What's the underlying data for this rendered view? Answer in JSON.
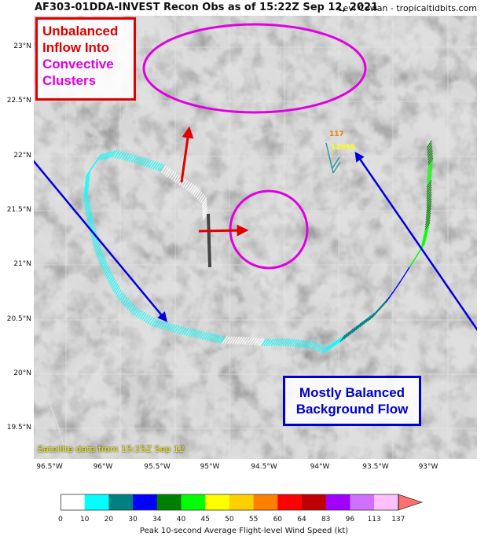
{
  "header": {
    "title": "AF303-01DDA-INVEST Recon Obs as of 15:22Z Sep 12, 2021",
    "credit": "Levi Cowan - tropicaltidbits.com"
  },
  "map": {
    "lat_labels": [
      "23°N",
      "22.5°N",
      "22°N",
      "21.5°N",
      "21°N",
      "20.5°N",
      "20°N",
      "19.5°N"
    ],
    "lon_labels": [
      "96.5°W",
      "96°W",
      "95.5°W",
      "95°W",
      "94.5°W",
      "94°W",
      "93.5°W",
      "93°W"
    ],
    "satellite_stamp": "Satellite data from 15:15Z Sep 12",
    "obs_labels": [
      "117",
      "12055"
    ]
  },
  "annotations": {
    "red_box": {
      "line1": "Unbalanced",
      "line2": "Inflow Into",
      "line3": "Convective",
      "line4": "Clusters"
    },
    "blue_box": {
      "line1": "Mostly Balanced",
      "line2": "Background Flow"
    }
  },
  "colorbar": {
    "label": "Peak 10-second Average Flight-level Wind Speed (kt)",
    "ticks": [
      "0",
      "10",
      "20",
      "30",
      "34",
      "40",
      "45",
      "50",
      "55",
      "60",
      "64",
      "83",
      "96",
      "113",
      "137"
    ],
    "colors": [
      "#ffffff",
      "#00ffff",
      "#008080",
      "#0000ff",
      "#008000",
      "#00ff00",
      "#ffff00",
      "#ffd000",
      "#ff8000",
      "#ff0000",
      "#c00000",
      "#a000ff",
      "#d070ff",
      "#ffc0ff",
      "#ff9ec8"
    ],
    "arrow_color": "#ff7070"
  },
  "colors": {
    "annotation_red": "#e00000",
    "annotation_magenta": "#e000e0",
    "annotation_blue": "#0000cc"
  }
}
